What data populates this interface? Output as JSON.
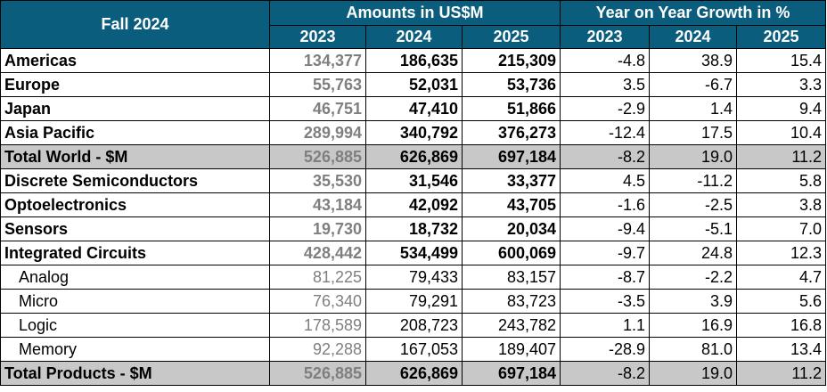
{
  "header": {
    "corner": "Fall 2024",
    "group_amounts": "Amounts in US$M",
    "group_growth": "Year on Year Growth in %",
    "years": [
      "2023",
      "2024",
      "2025",
      "2023",
      "2024",
      "2025"
    ]
  },
  "rows": [
    {
      "label": "Americas",
      "type": "main",
      "a2023": "134,377",
      "a2024": "186,635",
      "a2025": "215,309",
      "g2023": "-4.8",
      "g2024": "38.9",
      "g2025": "15.4"
    },
    {
      "label": "Europe",
      "type": "main",
      "a2023": "55,763",
      "a2024": "52,031",
      "a2025": "53,736",
      "g2023": "3.5",
      "g2024": "-6.7",
      "g2025": "3.3"
    },
    {
      "label": "Japan",
      "type": "main",
      "a2023": "46,751",
      "a2024": "47,410",
      "a2025": "51,866",
      "g2023": "-2.9",
      "g2024": "1.4",
      "g2025": "9.4"
    },
    {
      "label": "Asia Pacific",
      "type": "main",
      "a2023": "289,994",
      "a2024": "340,792",
      "a2025": "376,273",
      "g2023": "-12.4",
      "g2024": "17.5",
      "g2025": "10.4"
    },
    {
      "label": "Total World - $M",
      "type": "total",
      "a2023": "526,885",
      "a2024": "626,869",
      "a2025": "697,184",
      "g2023": "-8.2",
      "g2024": "19.0",
      "g2025": "11.2"
    },
    {
      "label": "Discrete Semiconductors",
      "type": "main",
      "a2023": "35,530",
      "a2024": "31,546",
      "a2025": "33,377",
      "g2023": "4.5",
      "g2024": "-11.2",
      "g2025": "5.8"
    },
    {
      "label": "Optoelectronics",
      "type": "main",
      "a2023": "43,184",
      "a2024": "42,092",
      "a2025": "43,705",
      "g2023": "-1.6",
      "g2024": "-2.5",
      "g2025": "3.8"
    },
    {
      "label": "Sensors",
      "type": "main",
      "a2023": "19,730",
      "a2024": "18,732",
      "a2025": "20,034",
      "g2023": "-9.4",
      "g2024": "-5.1",
      "g2025": "7.0"
    },
    {
      "label": "Integrated Circuits",
      "type": "main",
      "a2023": "428,442",
      "a2024": "534,499",
      "a2025": "600,069",
      "g2023": "-9.7",
      "g2024": "24.8",
      "g2025": "12.3"
    },
    {
      "label": "Analog",
      "type": "sub",
      "a2023": "81,225",
      "a2024": "79,433",
      "a2025": "83,157",
      "g2023": "-8.7",
      "g2024": "-2.2",
      "g2025": "4.7"
    },
    {
      "label": "Micro",
      "type": "sub",
      "a2023": "76,340",
      "a2024": "79,291",
      "a2025": "83,723",
      "g2023": "-3.5",
      "g2024": "3.9",
      "g2025": "5.6"
    },
    {
      "label": "Logic",
      "type": "sub",
      "a2023": "178,589",
      "a2024": "208,723",
      "a2025": "243,782",
      "g2023": "1.1",
      "g2024": "16.9",
      "g2025": "16.8"
    },
    {
      "label": "Memory",
      "type": "sub",
      "a2023": "92,288",
      "a2024": "167,053",
      "a2025": "189,407",
      "g2023": "-28.9",
      "g2024": "81.0",
      "g2025": "13.4"
    },
    {
      "label": "Total Products - $M",
      "type": "total",
      "a2023": "526,885",
      "a2024": "626,869",
      "a2025": "697,184",
      "g2023": "-8.2",
      "g2024": "19.0",
      "g2025": "11.2"
    }
  ],
  "colors": {
    "header_bg": "#0b5d7d",
    "header_text": "#ffffff",
    "total_row_bg": "#c8c8c8",
    "prior_year_text": "#7f7f7f"
  }
}
